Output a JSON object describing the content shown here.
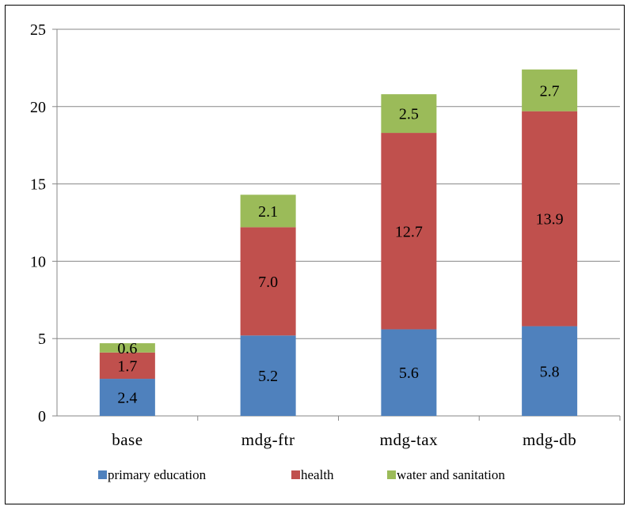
{
  "chart_data": {
    "type": "bar",
    "stacked": true,
    "categories": [
      "base",
      "mdg-ftr",
      "mdg-tax",
      "mdg-db"
    ],
    "series": [
      {
        "name": "primary education",
        "color": "#4F81BD",
        "values": [
          2.4,
          5.2,
          5.6,
          5.8
        ],
        "labels": [
          "2.4",
          "5.2",
          "5.6",
          "5.8"
        ]
      },
      {
        "name": "health",
        "color": "#C0504D",
        "values": [
          1.7,
          7.0,
          12.7,
          13.9
        ],
        "labels": [
          "1.7",
          "7.0",
          "12.7",
          "13.9"
        ]
      },
      {
        "name": "water and sanitation",
        "color": "#9BBB59",
        "values": [
          0.6,
          2.1,
          2.5,
          2.7
        ],
        "labels": [
          "0.6",
          "2.1",
          "2.5",
          "2.7"
        ]
      }
    ],
    "ylim": [
      0,
      25
    ],
    "yticks": [
      0,
      5,
      10,
      15,
      20,
      25
    ],
    "ytick_labels": [
      "0",
      "5",
      "10",
      "15",
      "20",
      "25"
    ],
    "grid": true,
    "legend_position": "bottom"
  }
}
